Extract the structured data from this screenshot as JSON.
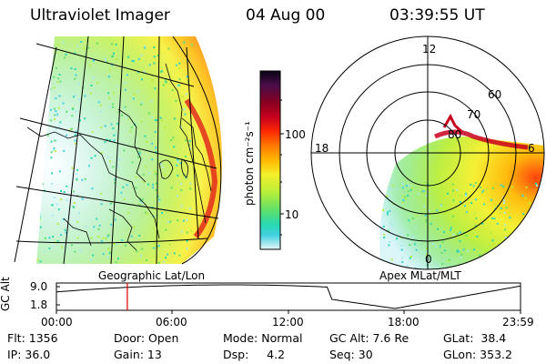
{
  "header": {
    "instrument": "Ultraviolet Imager",
    "date": "04 Aug 00",
    "time": "03:39:55 UT"
  },
  "left_panel": {
    "caption": "Geographic Lat/Lon"
  },
  "right_panel": {
    "caption": "Apex MLat/MLT",
    "mlt_labels": [
      "12",
      "18",
      "6",
      "0"
    ],
    "mlat_labels": [
      "60",
      "70",
      "80"
    ]
  },
  "colorbar": {
    "unit_label": "photon cm⁻²s⁻¹",
    "tick_labels": [
      "100",
      "10"
    ],
    "colors": [
      "#0a0414",
      "#4a0d4a",
      "#8a0020",
      "#c8001e",
      "#ff2a00",
      "#ff7a00",
      "#ffb800",
      "#f5ef2a",
      "#b8ee3a",
      "#5fe06a",
      "#29d8b0",
      "#3fd0e0",
      "#a8e8f0",
      "#e8f4f8"
    ]
  },
  "altitude_plot": {
    "ylabel": "GC Alt",
    "yticks": [
      "9.0",
      "1.8"
    ],
    "xticks": [
      "00:00",
      "06:00",
      "12:00",
      "18:00",
      "23:59"
    ],
    "marker_time": "03:39:55",
    "marker_color": "#dd0000"
  },
  "info": {
    "flt": "Flt: 1356",
    "ip": "IP: 36.0",
    "door": "Door: Open",
    "gain": "Gain: 13",
    "mode": "Mode: Normal",
    "dsp": "Dsp:     4.2",
    "gcalt": "GC Alt: 7.6 Re",
    "seq": "Seq: 30",
    "glat": "GLat:  38.4",
    "glon": "GLon: 353.2"
  }
}
